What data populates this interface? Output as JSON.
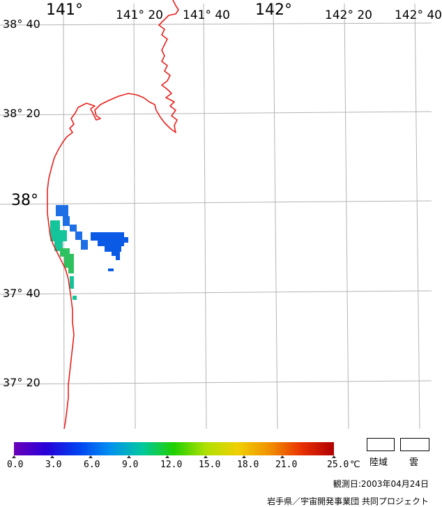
{
  "map": {
    "lon_labels": [
      {
        "text": "141°",
        "major": true
      },
      {
        "text": "141° 20",
        "major": false
      },
      {
        "text": "141° 40",
        "major": false
      },
      {
        "text": "142°",
        "major": true
      },
      {
        "text": "142° 20",
        "major": false
      },
      {
        "text": "142° 40",
        "major": false
      }
    ],
    "lat_labels": [
      {
        "text": "38° 40",
        "major": false
      },
      {
        "text": "38° 20",
        "major": false
      },
      {
        "text": "38°",
        "major": true
      },
      {
        "text": "37° 40",
        "major": false
      },
      {
        "text": "37° 20",
        "major": false
      }
    ],
    "coast_color": "#e8201c",
    "grid_color": "#b4b4b4",
    "sst_color_green": "#2fc060",
    "sst_color_teal": "#14c49a",
    "sst_color_blue": "#0a5ae6"
  },
  "colorbar": {
    "ticks": [
      "0.0",
      "3.0",
      "6.0",
      "9.0",
      "12.0",
      "15.0",
      "18.0",
      "21.0",
      "25.0"
    ],
    "unit": "℃",
    "colors": [
      "#6a00b8",
      "#2800d8",
      "#0040f0",
      "#0090f0",
      "#00c8a0",
      "#20d000",
      "#b0e000",
      "#f0d000",
      "#f09000",
      "#e83000",
      "#b00000"
    ]
  },
  "legend": {
    "land_label": "陸域",
    "cloud_label": "雲"
  },
  "observation": "観測日:2003年04月24日",
  "credit": "岩手県／宇宙開発事業団  共同プロジェクト"
}
